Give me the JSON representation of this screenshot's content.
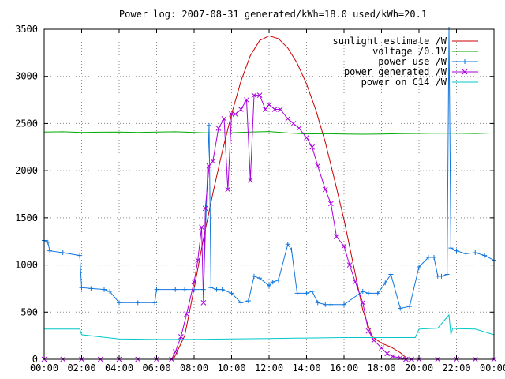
{
  "chart_data": {
    "type": "line",
    "title": "Power log: 2007-08-31 generated/kWh=18.0 used/kWh=20.1",
    "xlabel": "",
    "ylabel": "",
    "x_ticks": [
      "00:00",
      "02:00",
      "04:00",
      "06:00",
      "08:00",
      "10:00",
      "12:00",
      "14:00",
      "16:00",
      "18:00",
      "20:00",
      "22:00",
      "00:00"
    ],
    "y_ticks": [
      "0",
      "500",
      "1000",
      "1500",
      "2000",
      "2500",
      "3000",
      "3500"
    ],
    "xlim_hours": [
      0,
      24
    ],
    "ylim": [
      0,
      3500
    ],
    "grid": true,
    "legend_position": "top-right",
    "series": [
      {
        "name": "sunlight estimate /W",
        "color": "#cc0000",
        "marker": "none",
        "x": [
          6.9,
          7.5,
          8.0,
          8.5,
          9.0,
          9.5,
          10.0,
          10.5,
          11.0,
          11.5,
          12.0,
          12.5,
          13.0,
          13.5,
          14.0,
          14.5,
          15.0,
          15.5,
          16.0,
          16.5,
          17.0,
          17.5,
          18.0,
          18.5,
          19.0,
          19.4
        ],
        "y": [
          0,
          250,
          750,
          1280,
          1760,
          2200,
          2600,
          2950,
          3220,
          3380,
          3430,
          3400,
          3300,
          3140,
          2920,
          2640,
          2300,
          1900,
          1480,
          1000,
          520,
          240,
          170,
          130,
          70,
          0
        ]
      },
      {
        "name": "voltage /0.1V",
        "color": "#00aa00",
        "marker": "none",
        "x": [
          0,
          1,
          2,
          3,
          4,
          5,
          6,
          7,
          8,
          9,
          10,
          11,
          12,
          13,
          14,
          15,
          16,
          17,
          18,
          19,
          20,
          21,
          22,
          23,
          24
        ],
        "y": [
          2410,
          2412,
          2405,
          2408,
          2410,
          2406,
          2410,
          2412,
          2405,
          2400,
          2402,
          2410,
          2415,
          2400,
          2390,
          2392,
          2388,
          2386,
          2388,
          2392,
          2395,
          2398,
          2396,
          2394,
          2400
        ]
      },
      {
        "name": "power use /W",
        "color": "#1177dd",
        "marker": "plus",
        "x": [
          0,
          0.2,
          0.3,
          1.0,
          1.9,
          2.0,
          2.5,
          3.2,
          3.5,
          4.0,
          5.0,
          5.9,
          6.0,
          7.0,
          7.5,
          8.0,
          8.5,
          8.8,
          8.9,
          9.2,
          9.5,
          10.0,
          10.5,
          10.9,
          11.2,
          11.5,
          12.0,
          12.2,
          12.5,
          13.0,
          13.2,
          13.5,
          14.0,
          14.3,
          14.6,
          15.0,
          15.3,
          16.0,
          17.0,
          17.3,
          17.8,
          18.2,
          18.5,
          19.0,
          19.5,
          20.0,
          20.5,
          20.8,
          21.0,
          21.2,
          21.5,
          21.6,
          21.7,
          22.0,
          22.5,
          23.0,
          23.5,
          24.0
        ],
        "y": [
          1260,
          1240,
          1150,
          1130,
          1100,
          760,
          750,
          740,
          720,
          600,
          600,
          600,
          740,
          740,
          740,
          740,
          740,
          2480,
          760,
          740,
          740,
          700,
          600,
          620,
          880,
          860,
          780,
          820,
          840,
          1220,
          1160,
          700,
          700,
          720,
          600,
          580,
          580,
          580,
          720,
          700,
          700,
          810,
          900,
          540,
          560,
          980,
          1080,
          1080,
          880,
          880,
          900,
          3500,
          1180,
          1150,
          1120,
          1130,
          1100,
          1050
        ]
      },
      {
        "name": "power generated /W",
        "color": "#aa00dd",
        "marker": "x",
        "x": [
          0,
          1,
          2,
          3,
          4,
          5,
          6,
          6.8,
          7.0,
          7.3,
          7.6,
          8.0,
          8.2,
          8.4,
          8.5,
          8.6,
          8.8,
          9.0,
          9.3,
          9.6,
          9.8,
          10.0,
          10.2,
          10.5,
          10.8,
          11.0,
          11.2,
          11.5,
          11.8,
          12.0,
          12.3,
          12.6,
          13.0,
          13.3,
          13.6,
          14.0,
          14.3,
          14.6,
          15.0,
          15.3,
          15.6,
          16.0,
          16.3,
          16.6,
          17.0,
          17.3,
          17.6,
          18.0,
          18.3,
          18.6,
          19.0,
          19.3,
          19.6,
          20.0,
          21,
          22,
          23,
          24
        ],
        "y": [
          0,
          0,
          0,
          0,
          0,
          0,
          0,
          0,
          80,
          240,
          480,
          820,
          1050,
          1400,
          600,
          1600,
          2050,
          2100,
          2450,
          2550,
          1800,
          2600,
          2600,
          2650,
          2750,
          1900,
          2800,
          2800,
          2650,
          2700,
          2650,
          2650,
          2550,
          2500,
          2450,
          2350,
          2250,
          2050,
          1800,
          1650,
          1300,
          1200,
          1000,
          820,
          600,
          300,
          200,
          120,
          60,
          30,
          15,
          0,
          0,
          0,
          0,
          0,
          0,
          0
        ]
      },
      {
        "name": "power on C14 /W",
        "color": "#00c8c8",
        "marker": "none",
        "x": [
          0,
          1.0,
          1.5,
          1.9,
          2.0,
          4,
          6,
          8,
          10,
          12,
          14,
          16,
          18,
          19.8,
          20.0,
          21.0,
          21.6,
          21.7,
          21.8,
          22.0,
          23.0,
          24.0
        ],
        "y": [
          320,
          320,
          320,
          320,
          260,
          215,
          210,
          210,
          215,
          220,
          225,
          230,
          230,
          230,
          320,
          330,
          470,
          260,
          330,
          325,
          320,
          260
        ]
      }
    ]
  }
}
